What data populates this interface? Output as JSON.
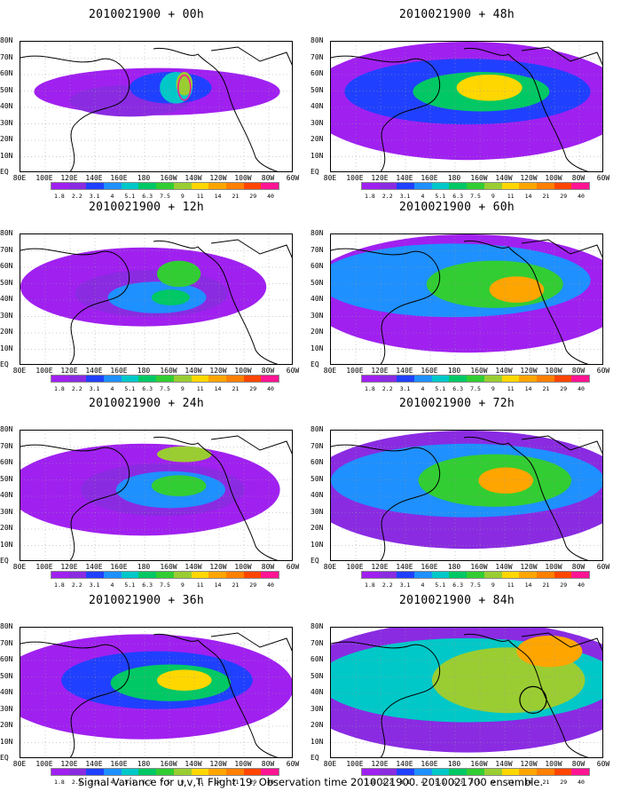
{
  "footer": "Signal Variance for u,v,T. Flight 19. Observation time 2010021900. 2010021700 ensemble.",
  "lat_labels": [
    "80N",
    "70N",
    "60N",
    "50N",
    "40N",
    "30N",
    "20N",
    "10N",
    "EQ"
  ],
  "lon_labels": [
    "80E",
    "100E",
    "120E",
    "140E",
    "160E",
    "180",
    "160W",
    "140W",
    "120W",
    "100W",
    "80W",
    "60W"
  ],
  "colorbar": {
    "labels": [
      "1.8",
      "2.2",
      "3.1",
      "4",
      "5.1",
      "6.3",
      "7.5",
      "9",
      "11",
      "14",
      "21",
      "29",
      "40"
    ],
    "colors": [
      "#a020f0",
      "#8a2be2",
      "#2040ff",
      "#1e90ff",
      "#00c8c8",
      "#00c864",
      "#32cd32",
      "#9acd32",
      "#ffd700",
      "#ffa500",
      "#ff7f00",
      "#ff4500",
      "#ff1493"
    ]
  },
  "chart_data": [
    {
      "type": "heatmap",
      "title": "2010021900 + 00h",
      "lead_hours": 0,
      "xlabel": "",
      "ylabel": "",
      "x_range": [
        "80E",
        "60W"
      ],
      "y_range": [
        "EQ",
        "80N"
      ],
      "units": "signal variance",
      "annotations": [
        "red contour near 140W 60N"
      ]
    },
    {
      "type": "heatmap",
      "title": "2010021900 + 12h",
      "lead_hours": 12,
      "xlabel": "",
      "ylabel": "",
      "x_range": [
        "80E",
        "60W"
      ],
      "y_range": [
        "EQ",
        "80N"
      ]
    },
    {
      "type": "heatmap",
      "title": "2010021900 + 24h",
      "lead_hours": 24,
      "xlabel": "",
      "ylabel": "",
      "x_range": [
        "80E",
        "60W"
      ],
      "y_range": [
        "EQ",
        "80N"
      ]
    },
    {
      "type": "heatmap",
      "title": "2010021900 + 36h",
      "lead_hours": 36,
      "xlabel": "",
      "ylabel": "",
      "x_range": [
        "80E",
        "60W"
      ],
      "y_range": [
        "EQ",
        "80N"
      ]
    },
    {
      "type": "heatmap",
      "title": "2010021900 + 48h",
      "lead_hours": 48,
      "xlabel": "",
      "ylabel": "",
      "x_range": [
        "80E",
        "60W"
      ],
      "y_range": [
        "EQ",
        "80N"
      ]
    },
    {
      "type": "heatmap",
      "title": "2010021900 + 60h",
      "lead_hours": 60,
      "xlabel": "",
      "ylabel": "",
      "x_range": [
        "80E",
        "60W"
      ],
      "y_range": [
        "EQ",
        "80N"
      ]
    },
    {
      "type": "heatmap",
      "title": "2010021900 + 72h",
      "lead_hours": 72,
      "xlabel": "",
      "ylabel": "",
      "x_range": [
        "80E",
        "60W"
      ],
      "y_range": [
        "EQ",
        "80N"
      ]
    },
    {
      "type": "heatmap",
      "title": "2010021900 + 84h",
      "lead_hours": 84,
      "xlabel": "",
      "ylabel": "",
      "x_range": [
        "80E",
        "60W"
      ],
      "y_range": [
        "EQ",
        "80N"
      ],
      "annotations": [
        "black circle near 120W 40N"
      ]
    }
  ]
}
